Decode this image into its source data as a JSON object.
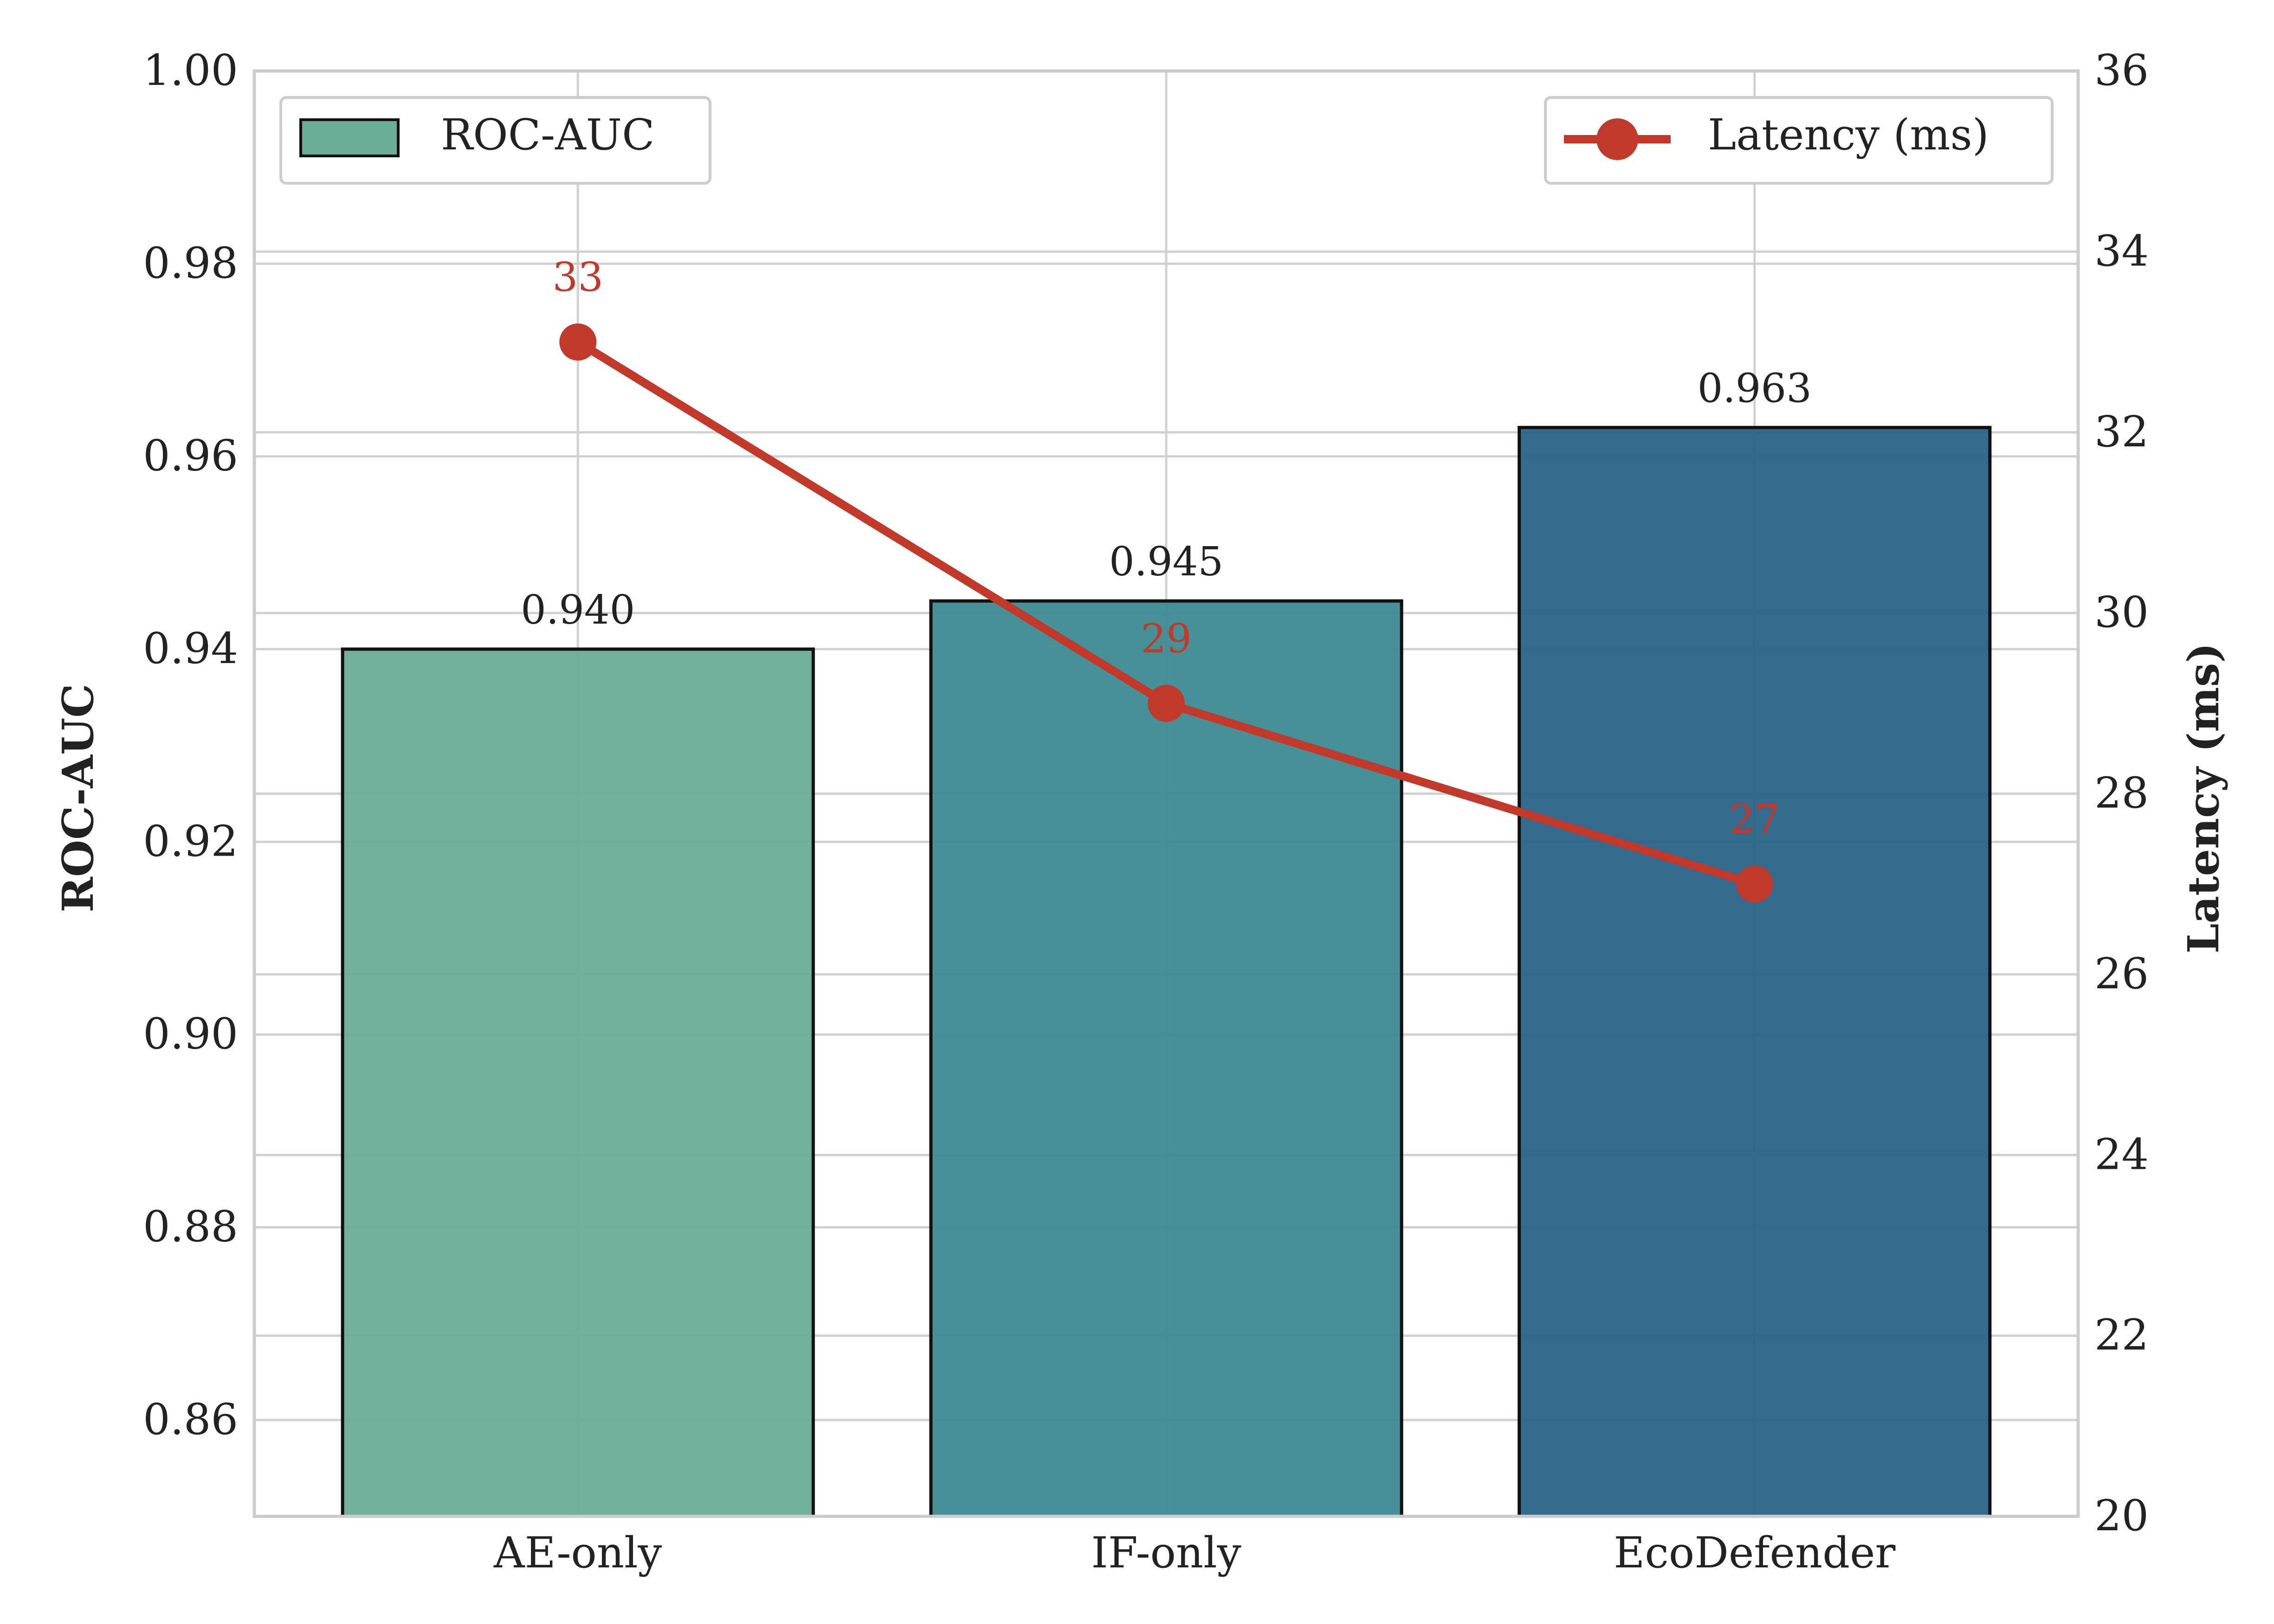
{
  "chart_data": {
    "type": "bar+line",
    "categories": [
      "AE-only",
      "IF-only",
      "EcoDefender"
    ],
    "bar_series": {
      "name": "ROC-AUC",
      "values": [
        0.94,
        0.945,
        0.963
      ],
      "value_labels": [
        "0.940",
        "0.945",
        "0.963"
      ],
      "colors": [
        "#6aae98",
        "#3e8a91",
        "#2a6289"
      ]
    },
    "line_series": {
      "name": "Latency (ms)",
      "values": [
        33,
        29,
        27
      ],
      "value_labels": [
        "33",
        "29",
        "27"
      ],
      "color": "#c0392b"
    },
    "ylabel_left": "ROC-AUC",
    "ylabel_right": "Latency (ms)",
    "ylim_left": [
      0.85,
      1.0
    ],
    "ylim_right": [
      20,
      36
    ],
    "yticks_left": [
      "0.86",
      "0.88",
      "0.90",
      "0.92",
      "0.94",
      "0.96",
      "0.98",
      "1.00"
    ],
    "yticks_right": [
      "20",
      "22",
      "24",
      "26",
      "28",
      "30",
      "32",
      "34",
      "36"
    ],
    "grid": true,
    "legend_left": {
      "label": "ROC-AUC",
      "placement": "top-left"
    },
    "legend_right": {
      "label": "Latency (ms)",
      "placement": "top-right"
    }
  }
}
